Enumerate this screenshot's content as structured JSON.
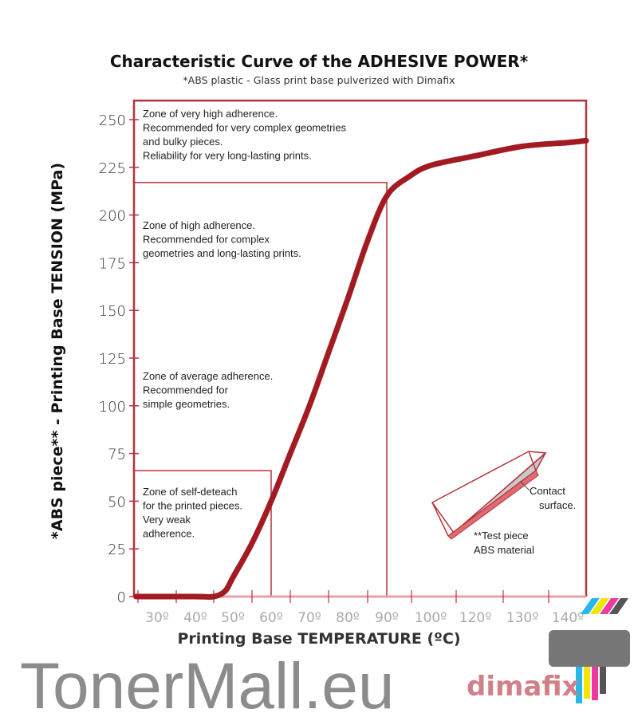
{
  "chart_data": {
    "type": "line",
    "title": "Characteristic Curve of the ADHESIVE POWER*",
    "subtitle": "*ABS plastic - Glass print base pulverized with Dimafix",
    "xlabel": "Printing Base TEMPERATURE (ºC)",
    "ylabel": "*ABS piece** - Printing Base TENSION (MPa)",
    "x_ticks": [
      30,
      40,
      50,
      60,
      70,
      80,
      90,
      100,
      120,
      130,
      140
    ],
    "x_tick_labels": [
      "30º",
      "40º",
      "50º",
      "60º",
      "70º",
      "80º",
      "90º",
      "100º",
      "120º",
      "130º",
      "140º"
    ],
    "y_ticks": [
      0,
      25,
      50,
      75,
      100,
      125,
      150,
      175,
      200,
      225,
      250
    ],
    "ylim": [
      0,
      260
    ],
    "xlim": [
      24.5,
      145
    ],
    "grid": false,
    "series": [
      {
        "name": "Adhesive power",
        "color": "#a31b22",
        "x": [
          24.5,
          40,
          45,
          48,
          50,
          55,
          60,
          65,
          70,
          75,
          80,
          85,
          90,
          95,
          100,
          120,
          130,
          140,
          145
        ],
        "y": [
          0,
          0,
          0,
          3,
          10,
          28,
          50,
          75,
          100,
          128,
          156,
          186,
          210,
          220,
          226,
          231,
          236,
          238,
          239
        ]
      }
    ],
    "zones": [
      {
        "name": "very-high",
        "x_end": 145,
        "y_top": 260,
        "lines": [
          "Zone of very high adherence.",
          "Recommended for very complex geometries",
          "and bulky pieces.",
          "Reliability for very long-lasting prints."
        ]
      },
      {
        "name": "high",
        "x_end": 90,
        "y_top": 217,
        "lines": [
          "Zone of high adherence.",
          "Recommended for complex",
          "geometries and long-lasting prints."
        ]
      },
      {
        "name": "average",
        "x_end": null,
        "y_top": null,
        "lines": [
          "Zone of average adherence.",
          "Recommended for",
          "simple geometries."
        ]
      },
      {
        "name": "self-detach",
        "x_end": 60,
        "y_top": 66,
        "lines": [
          "Zone of self-deteach",
          "for the printed pieces.",
          "Very weak",
          "adherence."
        ]
      }
    ],
    "annotations": {
      "contact": [
        "Contact",
        "surface."
      ],
      "test_piece": [
        "**Test piece",
        "ABS material"
      ]
    }
  },
  "watermark": {
    "text": "TonerMall.eu",
    "logo": "dimafix"
  },
  "colors": {
    "accent": "#a31b22",
    "frame": "#b5333b",
    "watermark": "#808080"
  }
}
